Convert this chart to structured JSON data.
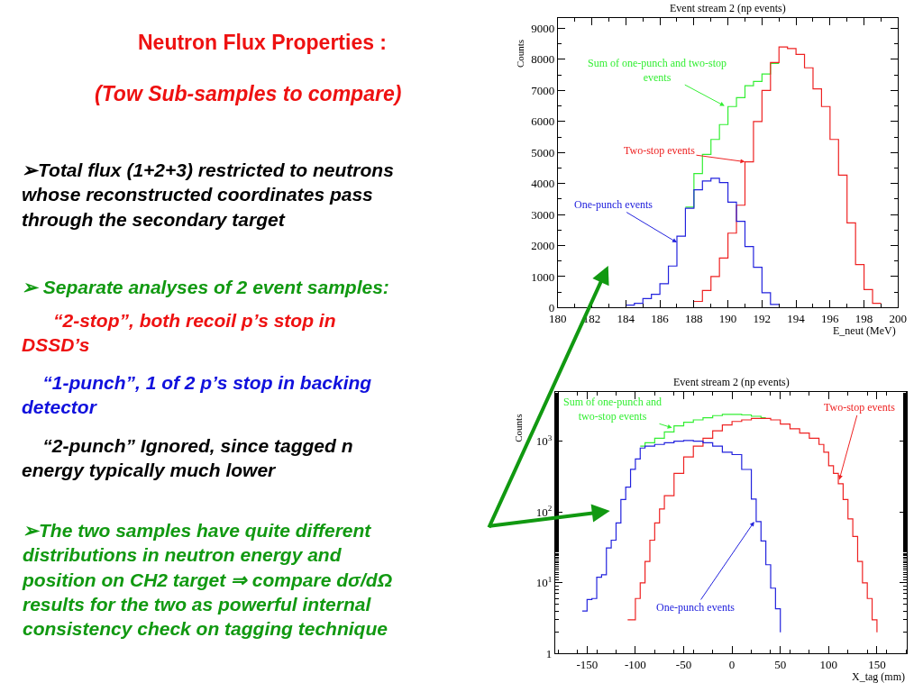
{
  "chart_data": [
    {
      "type": "step",
      "title": "Event stream 2 (np events)",
      "xlabel": "E_neut (MeV)",
      "ylabel": "Counts",
      "xlim": [
        180,
        200
      ],
      "xticks": [
        180,
        182,
        184,
        186,
        188,
        190,
        192,
        194,
        196,
        198,
        200
      ],
      "ylim": [
        0,
        9340
      ],
      "yticks": [
        0,
        1000,
        2000,
        3000,
        4000,
        5000,
        6000,
        7000,
        8000,
        9000
      ],
      "marker": "none",
      "line_style": "solid",
      "series": [
        {
          "color": "#33ee33",
          "x": [
            187.5,
            188,
            188.5,
            189,
            189.5,
            190,
            190.5,
            191,
            191.5,
            192,
            192.5,
            193
          ],
          "values": [
            3240,
            4320,
            4940,
            5420,
            5900,
            6480,
            6770,
            7150,
            7290,
            7530,
            7870,
            7870
          ]
        },
        {
          "color": "#ee2222",
          "x": [
            188,
            188.5,
            189,
            189.5,
            190,
            190.5,
            191,
            191.5,
            192,
            192.5,
            193,
            193.5,
            194,
            194.5,
            195,
            195.5,
            196,
            196.5,
            197,
            197.5,
            198,
            198.5,
            199
          ],
          "values": [
            200,
            550,
            1000,
            1600,
            2400,
            3300,
            4700,
            6000,
            7000,
            7900,
            8400,
            8350,
            8160,
            7730,
            7050,
            6480,
            5420,
            4270,
            2730,
            1390,
            580,
            140,
            140
          ]
        },
        {
          "color": "#2222dd",
          "x": [
            184,
            184.5,
            185,
            185.5,
            186,
            186.5,
            187,
            187.5,
            188,
            188.5,
            189,
            189.5,
            190,
            190.5,
            191,
            191.5,
            192,
            192.5,
            193
          ],
          "values": [
            80,
            140,
            290,
            430,
            770,
            1340,
            2300,
            3200,
            3800,
            4080,
            4170,
            4030,
            3400,
            2780,
            1970,
            1300,
            480,
            100,
            100
          ]
        }
      ],
      "annotations": [
        {
          "text": "Sum of one-punch and two-stop\nevents",
          "x": 189.8,
          "y": 6500
        },
        {
          "text": "Two-stop events",
          "x": 191,
          "y": 4700
        },
        {
          "text": "One-punch events",
          "x": 187,
          "y": 2100
        },
        "Neutron Flux Properties :",
        "(Tow Sub-samples to compare)",
        "➢Total flux (1+2+3) restricted to neutrons\nwhose reconstructed coordinates pass\nthrough the secondary target",
        "➢ Separate analyses of 2 event samples:",
        "“2-stop”, both recoil p’s stop in\nDSSD’s",
        "“1-punch”, 1 of 2 p’s stop in backing\ndetector",
        "“2-punch” Ignored, since tagged n\nenergy typically much lower",
        "➢The two samples have quite different\ndistributions in neutron energy and\nposition on CH2 target ⇒ compare dσ/dΩ\nresults for the two as powerful internal\nconsistency check on tagging technique"
      ]
    },
    {
      "type": "step",
      "title": "Event stream 2 (np events)",
      "xlabel": "X_tag (mm)",
      "ylabel": "Counts",
      "log": "y",
      "xlim": [
        -183,
        181
      ],
      "xticks": [
        -150,
        -100,
        -50,
        0,
        50,
        100,
        150
      ],
      "ylim": [
        1,
        4900
      ],
      "yticks": [
        1,
        {
          "value": 10,
          "label": "10$^{1}$"
        },
        {
          "value": 100,
          "label": "10$^{2}$"
        },
        {
          "value": 1000,
          "label": "10$^{3}$"
        }
      ],
      "marker": "none",
      "line_style": "solid",
      "series": [
        {
          "color": "#33ee33",
          "x": [
            -95,
            -90,
            -80,
            -70,
            -60,
            -50,
            -40,
            -30,
            -20,
            -10,
            0,
            10,
            20,
            30,
            35
          ],
          "values": [
            850,
            950,
            1100,
            1350,
            1650,
            1850,
            2000,
            2150,
            2300,
            2400,
            2400,
            2350,
            2250,
            2150,
            2150
          ]
        },
        {
          "color": "#ee2222",
          "x": [
            -108,
            -100,
            -95,
            -90,
            -85,
            -80,
            -75,
            -70,
            -60,
            -50,
            -40,
            -30,
            -20,
            -10,
            0,
            10,
            20,
            30,
            40,
            50,
            60,
            70,
            80,
            90,
            95,
            100,
            105,
            110,
            115,
            120,
            125,
            130,
            135,
            140,
            145,
            150
          ],
          "values": [
            3,
            6,
            10,
            20,
            40,
            70,
            110,
            170,
            350,
            600,
            850,
            1100,
            1400,
            1700,
            1900,
            2000,
            2100,
            2100,
            2000,
            1750,
            1500,
            1300,
            1100,
            900,
            700,
            450,
            350,
            250,
            150,
            80,
            45,
            20,
            10,
            6,
            3,
            2
          ]
        },
        {
          "color": "#2222dd",
          "x": [
            -155,
            -150,
            -145,
            -140,
            -135,
            -130,
            -125,
            -120,
            -115,
            -110,
            -105,
            -100,
            -95,
            -90,
            -80,
            -70,
            -60,
            -50,
            -40,
            -30,
            -20,
            -10,
            0,
            10,
            20,
            25,
            30,
            35,
            40,
            45,
            50
          ],
          "values": [
            4,
            5.8,
            6,
            12,
            13,
            31,
            40,
            70,
            150,
            224,
            400,
            560,
            800,
            850,
            900,
            950,
            1000,
            1020,
            1000,
            950,
            850,
            700,
            647,
            399,
            152,
            73,
            39,
            18,
            8.4,
            4.3,
            2
          ]
        }
      ],
      "annotations": [
        {
          "text": "Sum of one-punch and\ntwo-stop events",
          "x": -62,
          "y": 1545
        },
        {
          "text": "Two-stop events",
          "x": 111,
          "y": 285
        },
        {
          "text": "One-punch events",
          "x": 23,
          "y": 73
        }
      ]
    }
  ]
}
